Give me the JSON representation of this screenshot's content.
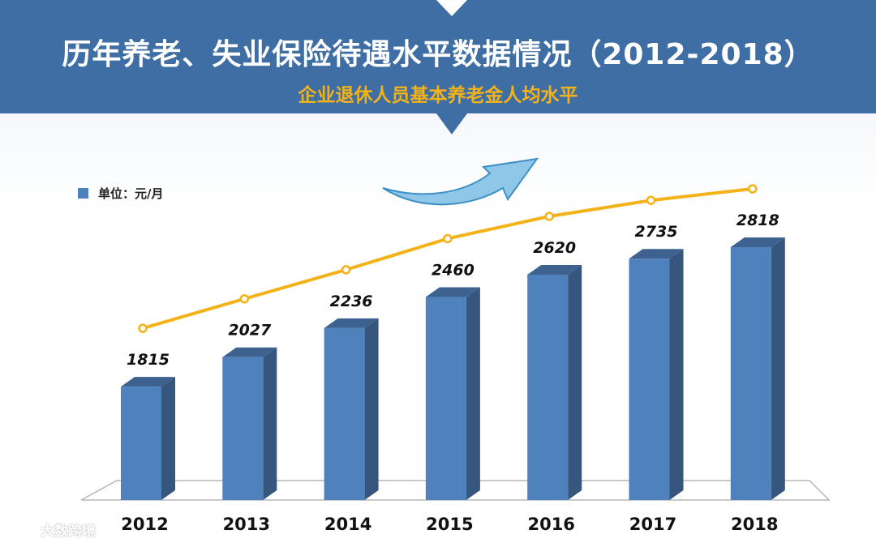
{
  "header": {
    "title": "历年养老、失业保险待遇水平数据情况（2012-2018）",
    "subtitle": "企业退休人员基本养老金人均水平"
  },
  "legend": {
    "label": "单位：元/月"
  },
  "watermark": {
    "text": "大数跨境"
  },
  "colors": {
    "banner": "#3f6ea5",
    "accent": "#f3b318",
    "bar_front": "#4f81bd",
    "bar_side": "#36567d",
    "bar_top": "#3d628f",
    "trend_line": "#f3b318"
  },
  "chart_data": {
    "type": "bar",
    "categories": [
      "2012",
      "2013",
      "2014",
      "2015",
      "2016",
      "2017",
      "2018"
    ],
    "values": [
      1815,
      2027,
      2236,
      2460,
      2620,
      2735,
      2818
    ],
    "trend_line": true,
    "decoration": "arrow-up-right-icon"
  }
}
